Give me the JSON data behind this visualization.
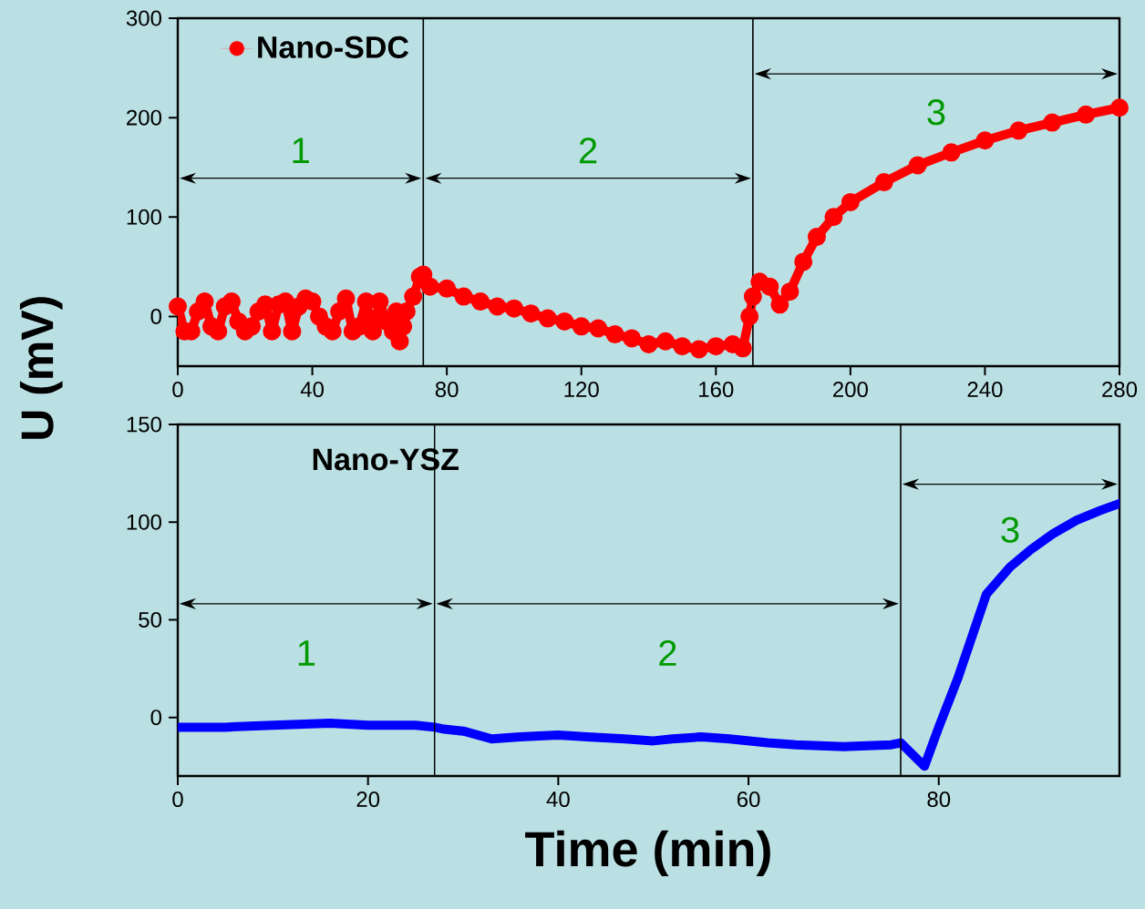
{
  "chart_data": [
    {
      "type": "line",
      "xlim": [
        0,
        280
      ],
      "ylim": [
        -50,
        300
      ],
      "xticks": [
        0,
        40,
        80,
        120,
        160,
        200,
        240,
        280
      ],
      "yticks": [
        0,
        100,
        200,
        300
      ],
      "legend": "top left",
      "marker": "circle",
      "series": [
        {
          "name": "Nano-SDC",
          "color": "#ff0000",
          "x": [
            0,
            2,
            4,
            6,
            8,
            10,
            12,
            14,
            16,
            18,
            20,
            22,
            24,
            26,
            28,
            30,
            32,
            34,
            36,
            38,
            40,
            42,
            44,
            46,
            48,
            50,
            52,
            54,
            56,
            58,
            60,
            62,
            64,
            65,
            66,
            67,
            68,
            70,
            72,
            73,
            75,
            80,
            85,
            90,
            95,
            100,
            105,
            110,
            115,
            120,
            125,
            130,
            135,
            140,
            145,
            150,
            155,
            160,
            165,
            168,
            169,
            170,
            171,
            173,
            176,
            179,
            182,
            186,
            190,
            195,
            200,
            210,
            220,
            230,
            240,
            250,
            260,
            270,
            280
          ],
          "values": [
            10,
            -15,
            -15,
            5,
            15,
            -10,
            -15,
            10,
            15,
            -5,
            -15,
            -10,
            5,
            12,
            -15,
            12,
            15,
            -15,
            10,
            18,
            15,
            0,
            -10,
            -15,
            5,
            18,
            -15,
            -10,
            15,
            -15,
            15,
            -5,
            -15,
            5,
            -25,
            -10,
            5,
            20,
            40,
            42,
            30,
            28,
            20,
            15,
            10,
            8,
            3,
            -2,
            -5,
            -10,
            -12,
            -18,
            -22,
            -28,
            -25,
            -30,
            -33,
            -30,
            -28,
            -32,
            null,
            0,
            20,
            35,
            30,
            12,
            25,
            55,
            80,
            100,
            115,
            135,
            152,
            165,
            177,
            187,
            195,
            203,
            210
          ]
        }
      ],
      "ref_lines": [
        {
          "axis": "x",
          "value": 73
        },
        {
          "axis": "x",
          "value": 171
        }
      ],
      "annotations": [
        "1",
        "2",
        "3"
      ]
    },
    {
      "type": "line",
      "ylabel": "U (mV)",
      "xlabel": "Time (min)",
      "xlim": [
        0,
        99
      ],
      "ylim": [
        -30,
        150
      ],
      "xticks": [
        0,
        20,
        40,
        60,
        80
      ],
      "yticks": [
        0,
        50,
        100,
        150
      ],
      "series": [
        {
          "color": "#0000ff",
          "x": [
            0,
            5,
            10,
            16,
            20,
            25,
            27,
            28,
            30,
            33,
            36,
            40,
            43,
            47,
            50,
            52,
            55,
            58,
            62,
            65,
            70,
            75,
            76,
            76.5,
            77.5,
            78.5,
            80,
            82,
            85,
            87.5,
            89.7,
            92,
            94.5,
            97,
            99
          ],
          "values": [
            -5,
            -5,
            -4,
            -3,
            -4,
            -4,
            -5,
            -6,
            -7,
            -11,
            -10,
            -9,
            -10,
            -11,
            -12,
            -11,
            -10,
            -11,
            -13,
            -14,
            -15,
            -14,
            -13,
            null,
            null,
            -25,
            -5,
            20,
            63,
            77,
            86,
            94,
            101,
            106,
            109.5
          ]
        }
      ],
      "ref_lines": [
        {
          "axis": "x",
          "value": 27
        },
        {
          "axis": "x",
          "value": 76
        }
      ],
      "annotations": [
        "Nano-YSZ",
        "1",
        "2",
        "3"
      ]
    }
  ]
}
